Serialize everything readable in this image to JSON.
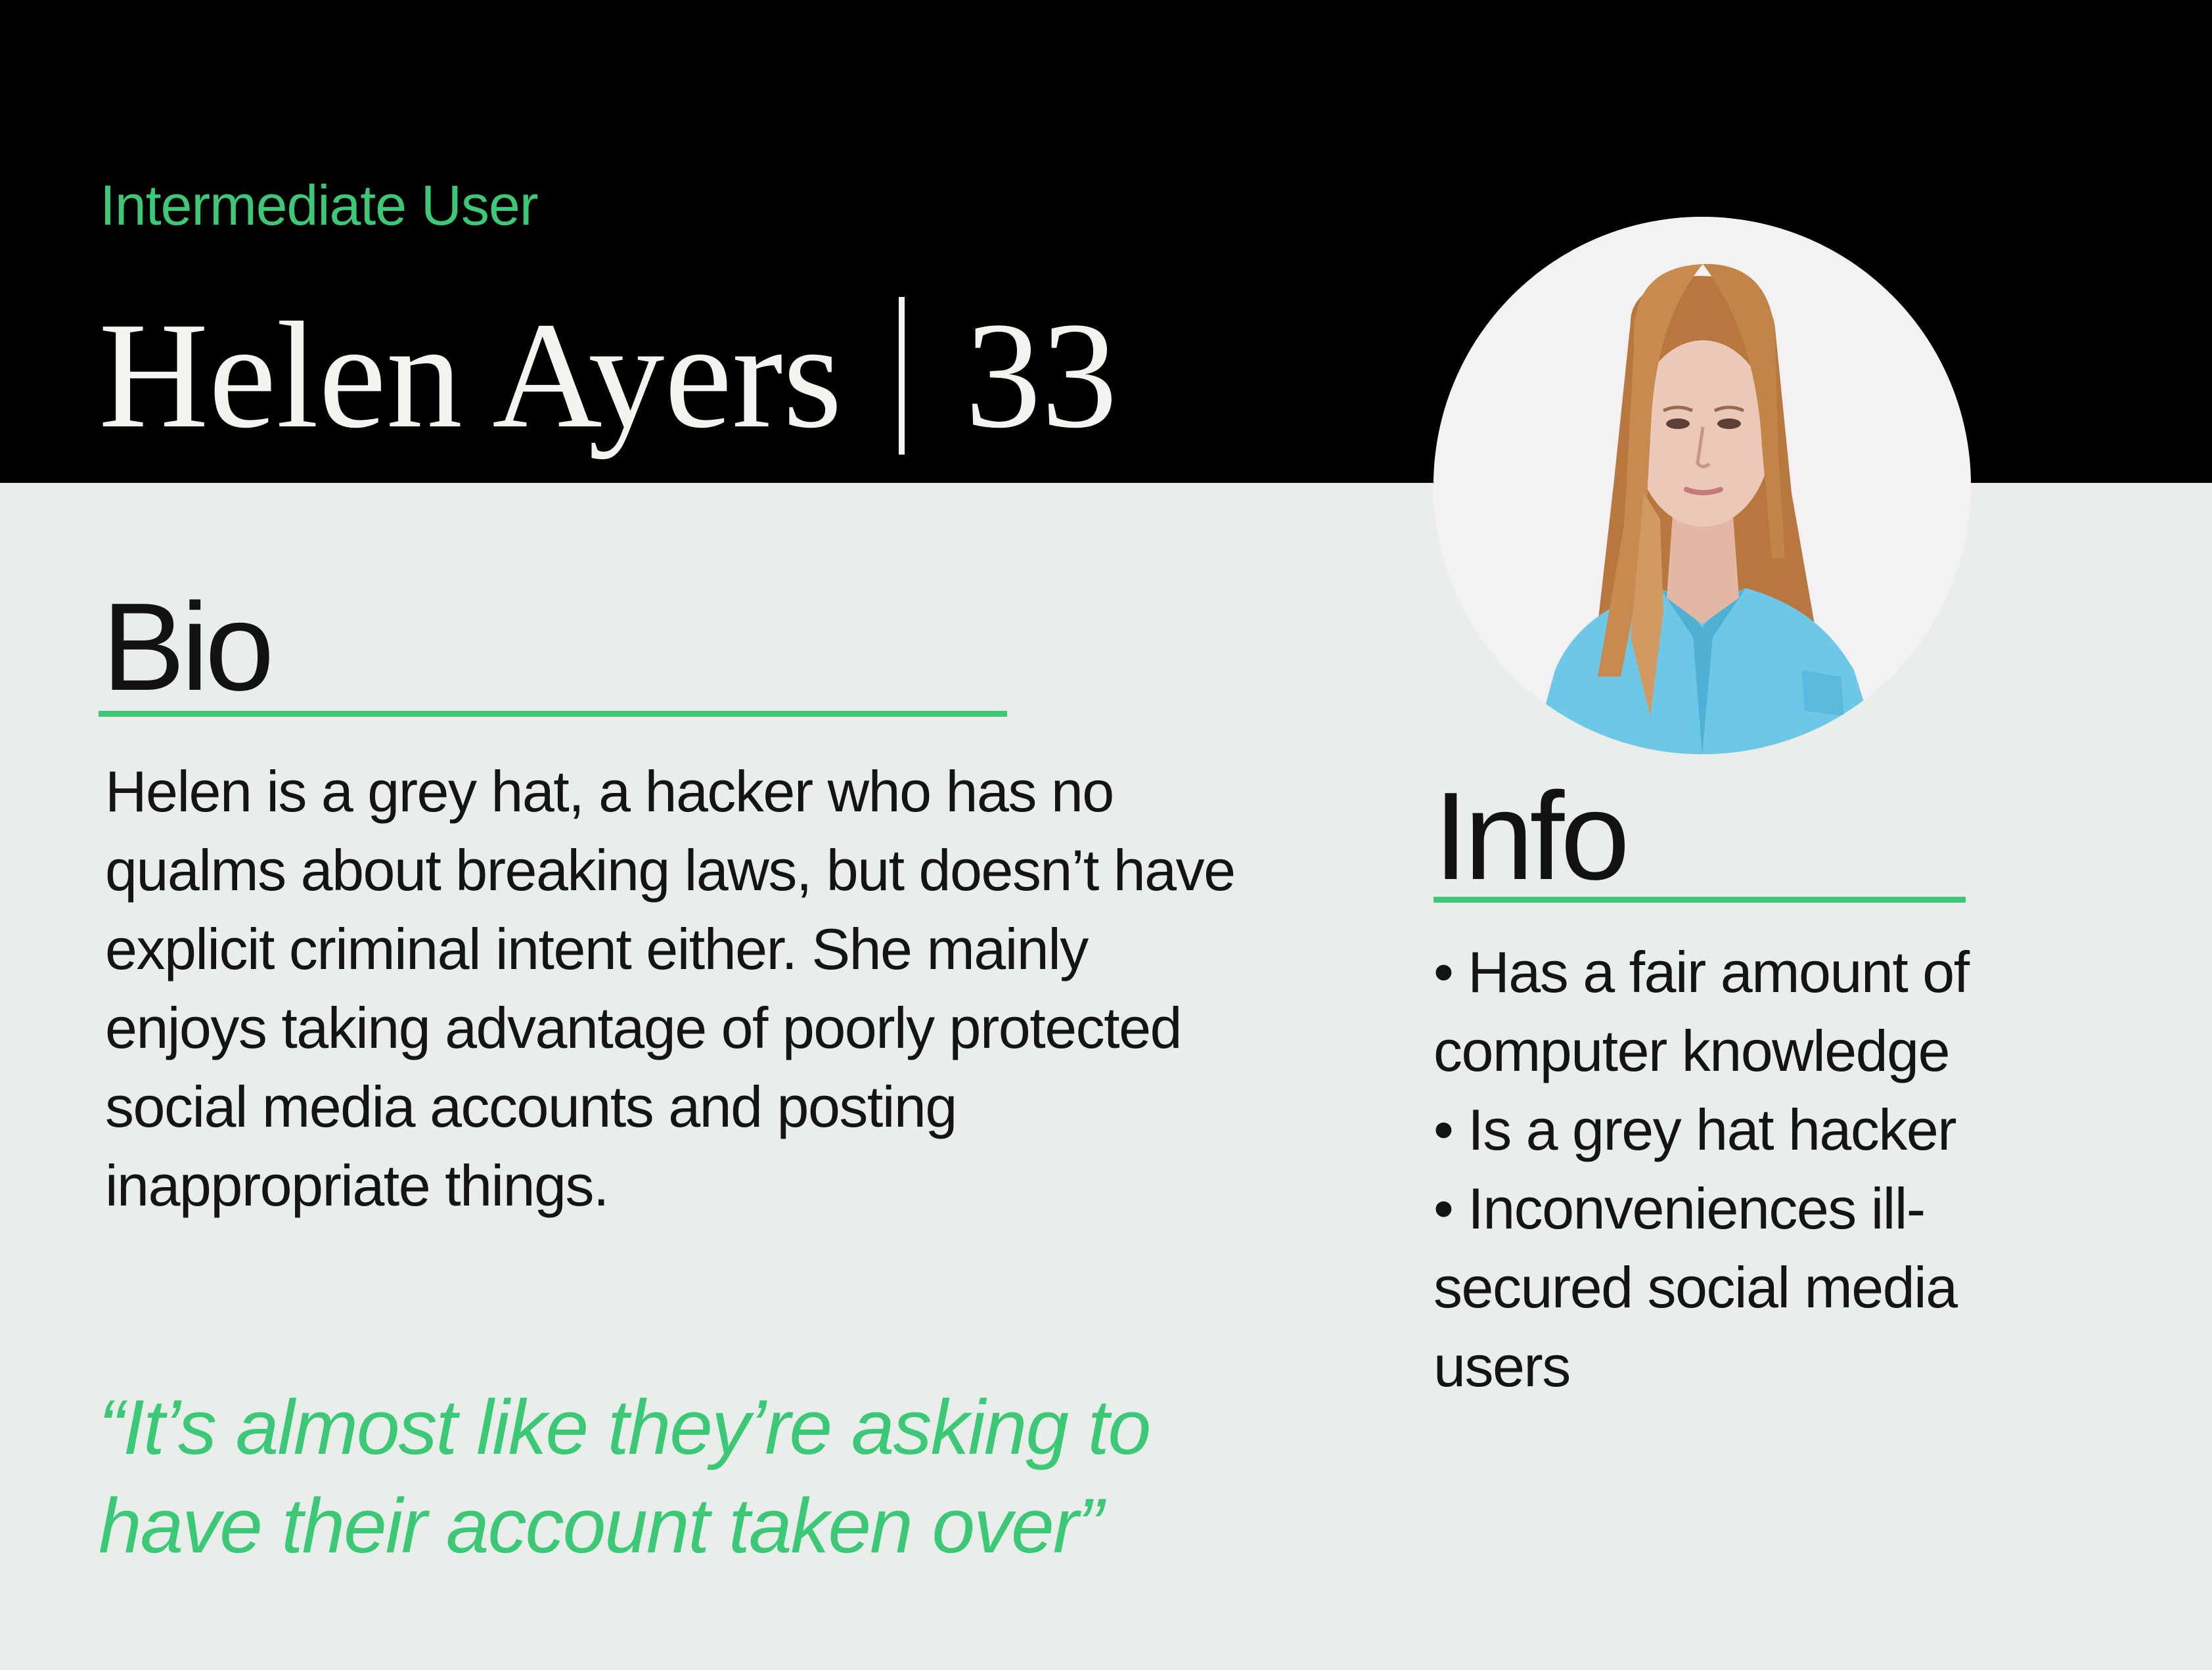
{
  "colors": {
    "accent": "#3dc878",
    "header_bg": "#000000",
    "page_bg": "#e9eeeb",
    "text_dark": "#141414",
    "text_light": "#f3f3ef"
  },
  "header": {
    "user_type": "Intermediate User",
    "name": "Helen Ayers",
    "age": "33"
  },
  "avatar": {
    "icon": "persona-portrait"
  },
  "bio": {
    "title": "Bio",
    "text": "Helen is a grey hat, a hacker who has no qualms about breaking laws, but doesn’t have explicit criminal intent either. She mainly enjoys taking advantage of poorly protected social media accounts and posting inappropriate things.",
    "quote": "“It’s almost like they’re asking to have their account taken over”"
  },
  "info": {
    "title": "Info",
    "items": [
      "• Has a fair amount of computer knowledge",
      "• Is a grey hat hacker",
      "• Inconveniences ill-secured social media users"
    ]
  }
}
